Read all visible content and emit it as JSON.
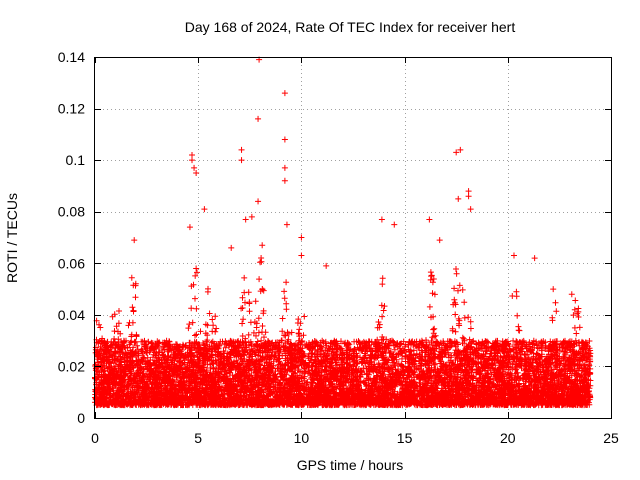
{
  "chart_data": {
    "type": "scatter",
    "title": "Day 168 of 2024, Rate Of TEC Index for receiver hert",
    "xlabel": "GPS time / hours",
    "ylabel": "ROTI / TECUs",
    "xlim": [
      0,
      25
    ],
    "ylim": [
      0,
      0.14
    ],
    "xticks": [
      0,
      5,
      10,
      15,
      20,
      25
    ],
    "yticks": [
      0,
      0.02,
      0.04,
      0.06,
      0.08,
      0.1,
      0.12,
      0.14
    ],
    "xtick_labels": [
      "0",
      "5",
      "10",
      "15",
      "20",
      "25"
    ],
    "ytick_labels": [
      "0",
      "0.02",
      "0.04",
      "0.06",
      "0.08",
      "0.1",
      "0.12",
      "0.14"
    ],
    "grid": true,
    "marker": "+",
    "color": "#ff0000",
    "x_range_of_data": [
      0,
      24
    ],
    "typical_band": [
      0.005,
      0.03
    ],
    "notable_points": [
      {
        "x": 7.95,
        "y": 0.139
      },
      {
        "x": 9.2,
        "y": 0.126
      },
      {
        "x": 7.9,
        "y": 0.116
      },
      {
        "x": 9.2,
        "y": 0.108
      },
      {
        "x": 7.1,
        "y": 0.104
      },
      {
        "x": 7.1,
        "y": 0.1
      },
      {
        "x": 4.7,
        "y": 0.102
      },
      {
        "x": 4.7,
        "y": 0.1
      },
      {
        "x": 4.8,
        "y": 0.097
      },
      {
        "x": 4.9,
        "y": 0.095
      },
      {
        "x": 9.2,
        "y": 0.097
      },
      {
        "x": 9.2,
        "y": 0.092
      },
      {
        "x": 17.5,
        "y": 0.103
      },
      {
        "x": 17.7,
        "y": 0.104
      },
      {
        "x": 18.1,
        "y": 0.088
      },
      {
        "x": 18.1,
        "y": 0.086
      },
      {
        "x": 18.2,
        "y": 0.081
      },
      {
        "x": 17.6,
        "y": 0.085
      },
      {
        "x": 7.9,
        "y": 0.084
      },
      {
        "x": 5.3,
        "y": 0.081
      },
      {
        "x": 7.3,
        "y": 0.077
      },
      {
        "x": 7.6,
        "y": 0.078
      },
      {
        "x": 13.9,
        "y": 0.077
      },
      {
        "x": 14.5,
        "y": 0.075
      },
      {
        "x": 9.3,
        "y": 0.075
      },
      {
        "x": 16.2,
        "y": 0.077
      },
      {
        "x": 4.6,
        "y": 0.074
      },
      {
        "x": 10.0,
        "y": 0.07
      },
      {
        "x": 1.9,
        "y": 0.069
      },
      {
        "x": 16.7,
        "y": 0.069
      },
      {
        "x": 6.6,
        "y": 0.066
      },
      {
        "x": 20.3,
        "y": 0.063
      },
      {
        "x": 21.3,
        "y": 0.062
      },
      {
        "x": 11.2,
        "y": 0.059
      },
      {
        "x": 4.9,
        "y": 0.058
      },
      {
        "x": 8.1,
        "y": 0.067
      },
      {
        "x": 10.0,
        "y": 0.063
      },
      {
        "x": 23.1,
        "y": 0.048
      },
      {
        "x": 22.2,
        "y": 0.05
      }
    ]
  }
}
